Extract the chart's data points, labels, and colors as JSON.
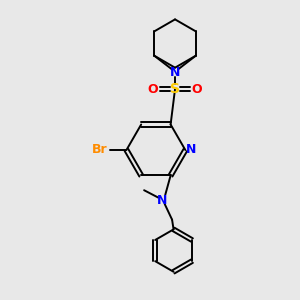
{
  "background_color": "#e8e8e8",
  "bond_color": "#000000",
  "N_color": "#0000ff",
  "S_color": "#ffcc00",
  "O_color": "#ff0000",
  "Br_color": "#ff8c00",
  "figsize": [
    3.0,
    3.0
  ],
  "dpi": 100,
  "xlim": [
    0,
    10
  ],
  "ylim": [
    0,
    10
  ]
}
